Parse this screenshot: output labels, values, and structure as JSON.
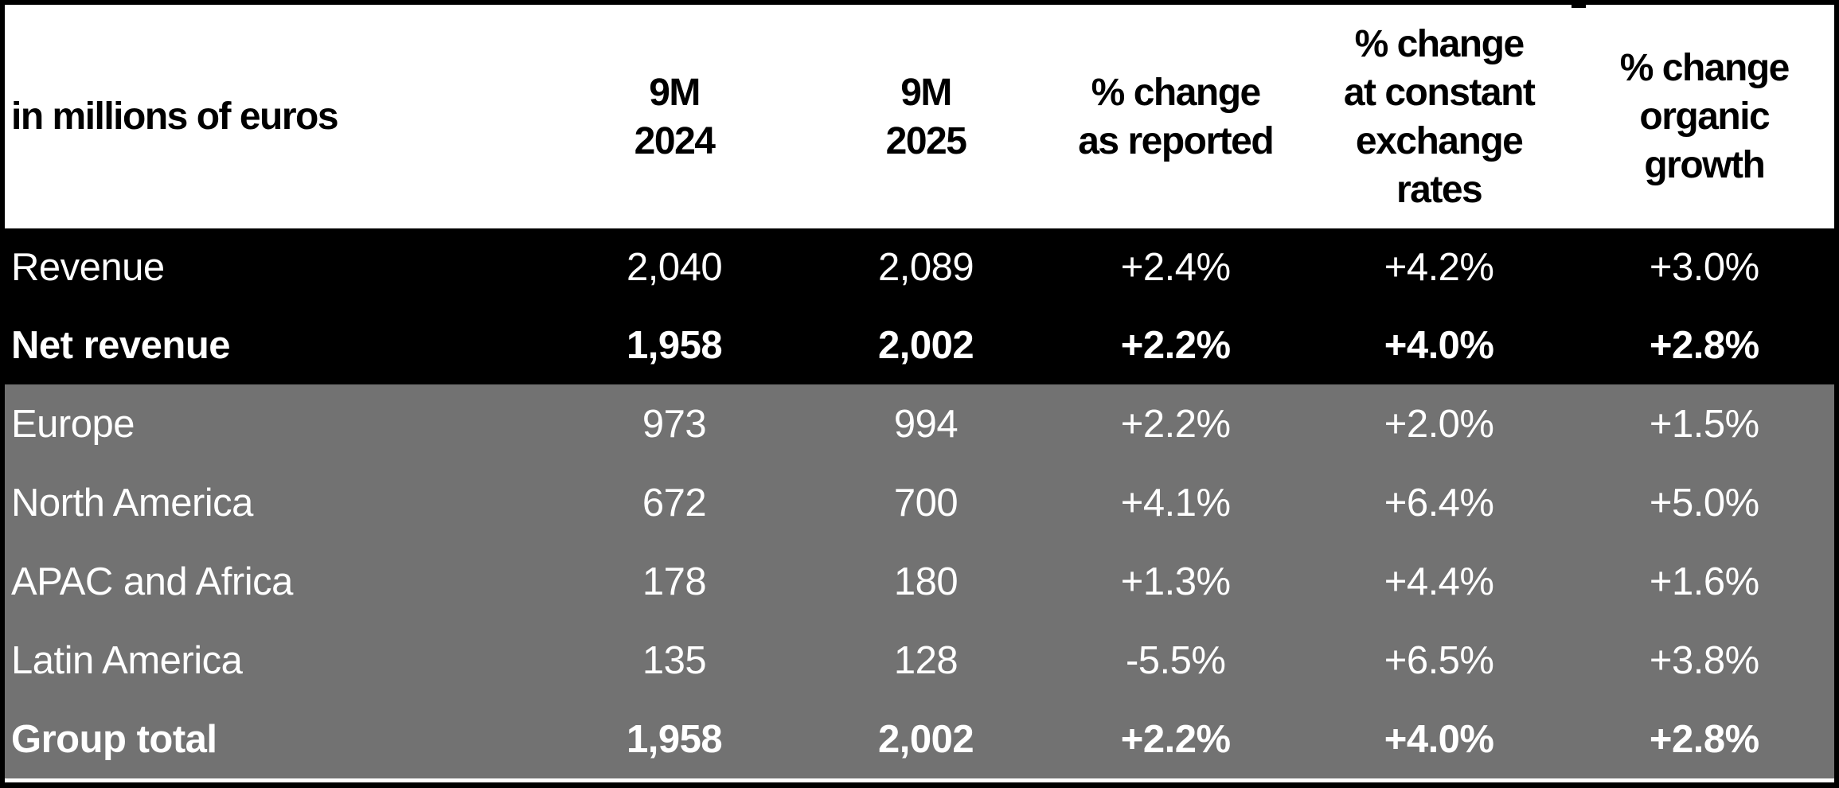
{
  "table": {
    "unit_label": "in millions of euros",
    "columns": [
      "in millions of euros",
      "9M\n2024",
      "9M\n2025",
      "% change\nas reported",
      "% change\nat constant\nexchange\nrates",
      "% change\norganic\ngrowth"
    ],
    "rows": [
      {
        "label": "Revenue",
        "cells": [
          "2,040",
          "2,089",
          "+2.4%",
          "+4.2%",
          "+3.0%"
        ]
      },
      {
        "label": "Net revenue",
        "cells": [
          "1,958",
          "2,002",
          "+2.2%",
          "+4.0%",
          "+2.8%"
        ]
      },
      {
        "label": "Europe",
        "cells": [
          "973",
          "994",
          "+2.2%",
          "+2.0%",
          "+1.5%"
        ]
      },
      {
        "label": "North America",
        "cells": [
          "672",
          "700",
          "+4.1%",
          "+6.4%",
          "+5.0%"
        ]
      },
      {
        "label": "APAC and Africa",
        "cells": [
          "178",
          "180",
          "+1.3%",
          "+4.4%",
          "+1.6%"
        ]
      },
      {
        "label": "Latin America",
        "cells": [
          "135",
          "128",
          "-5.5%",
          "+6.5%",
          "+3.8%"
        ]
      },
      {
        "label": "Group total",
        "cells": [
          "1,958",
          "2,002",
          "+2.2%",
          "+4.0%",
          "+2.8%"
        ]
      }
    ]
  },
  "colors": {
    "frame_border": "#000000",
    "header_bg": "#ffffff",
    "header_text": "#000000",
    "highlight_section_bg": "#000000",
    "regions_section_bg": "#727272",
    "body_text": "#ffffff",
    "bottom_divider": "#ffffff"
  },
  "chart_data": {
    "type": "table",
    "title": "in millions of euros",
    "columns": [
      "in millions of euros",
      "9M 2024",
      "9M 2025",
      "% change as reported",
      "% change at constant exchange rates",
      "% change organic growth"
    ],
    "rows": [
      [
        "Revenue",
        "2,040",
        "2,089",
        "+2.4%",
        "+4.2%",
        "+3.0%"
      ],
      [
        "Net revenue",
        "1,958",
        "2,002",
        "+2.2%",
        "+4.0%",
        "+2.8%"
      ],
      [
        "Europe",
        "973",
        "994",
        "+2.2%",
        "+2.0%",
        "+1.5%"
      ],
      [
        "North America",
        "672",
        "700",
        "+4.1%",
        "+6.4%",
        "+5.0%"
      ],
      [
        "APAC and Africa",
        "178",
        "180",
        "+1.3%",
        "+4.4%",
        "+1.6%"
      ],
      [
        "Latin America",
        "135",
        "128",
        "-5.5%",
        "+6.5%",
        "+3.8%"
      ],
      [
        "Group total",
        "1,958",
        "2,002",
        "+2.2%",
        "+4.0%",
        "+2.8%"
      ]
    ],
    "sections": [
      {
        "rows": [
          0,
          1
        ],
        "style": "black-highlight"
      },
      {
        "rows": [
          2,
          3,
          4,
          5,
          6
        ],
        "style": "gray-regions"
      }
    ],
    "bold_rows": [
      "Net revenue",
      "Group total"
    ]
  }
}
